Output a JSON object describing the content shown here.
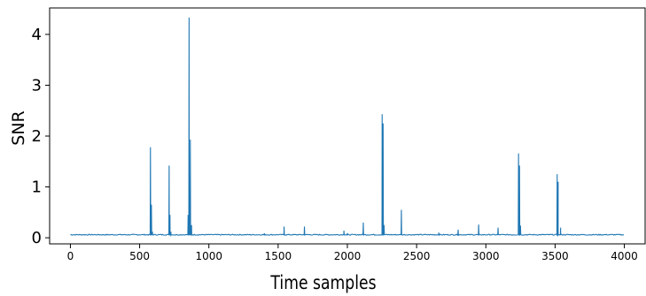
{
  "chart_data": {
    "type": "line",
    "title": "",
    "xlabel": "Time samples",
    "ylabel": "SNR",
    "xlim": [
      -150,
      4150
    ],
    "ylim": [
      -0.12,
      4.52
    ],
    "xticks": [
      0,
      500,
      1000,
      1500,
      2000,
      2500,
      3000,
      3500,
      4000
    ],
    "yticks": [
      0,
      1,
      2,
      3,
      4
    ],
    "grid": false,
    "legend": "none",
    "series": [
      {
        "color": "#1f77b4",
        "baseline": 0.06,
        "x_range": [
          0,
          4000
        ],
        "peaks": [
          {
            "x": 578,
            "y": 1.78
          },
          {
            "x": 585,
            "y": 0.65
          },
          {
            "x": 592,
            "y": 0.12
          },
          {
            "x": 713,
            "y": 1.42
          },
          {
            "x": 719,
            "y": 0.45
          },
          {
            "x": 726,
            "y": 0.12
          },
          {
            "x": 850,
            "y": 0.45
          },
          {
            "x": 857,
            "y": 4.33
          },
          {
            "x": 866,
            "y": 1.93
          },
          {
            "x": 875,
            "y": 0.25
          },
          {
            "x": 1400,
            "y": 0.09
          },
          {
            "x": 1543,
            "y": 0.22
          },
          {
            "x": 1690,
            "y": 0.22
          },
          {
            "x": 1975,
            "y": 0.14
          },
          {
            "x": 2000,
            "y": 0.09
          },
          {
            "x": 2115,
            "y": 0.3
          },
          {
            "x": 2251,
            "y": 2.43
          },
          {
            "x": 2258,
            "y": 2.25
          },
          {
            "x": 2265,
            "y": 0.25
          },
          {
            "x": 2390,
            "y": 0.55
          },
          {
            "x": 2660,
            "y": 0.1
          },
          {
            "x": 2800,
            "y": 0.16
          },
          {
            "x": 2948,
            "y": 0.26
          },
          {
            "x": 3088,
            "y": 0.2
          },
          {
            "x": 3236,
            "y": 1.66
          },
          {
            "x": 3243,
            "y": 1.42
          },
          {
            "x": 3250,
            "y": 0.24
          },
          {
            "x": 3515,
            "y": 1.25
          },
          {
            "x": 3522,
            "y": 1.1
          },
          {
            "x": 3540,
            "y": 0.2
          }
        ]
      }
    ]
  }
}
